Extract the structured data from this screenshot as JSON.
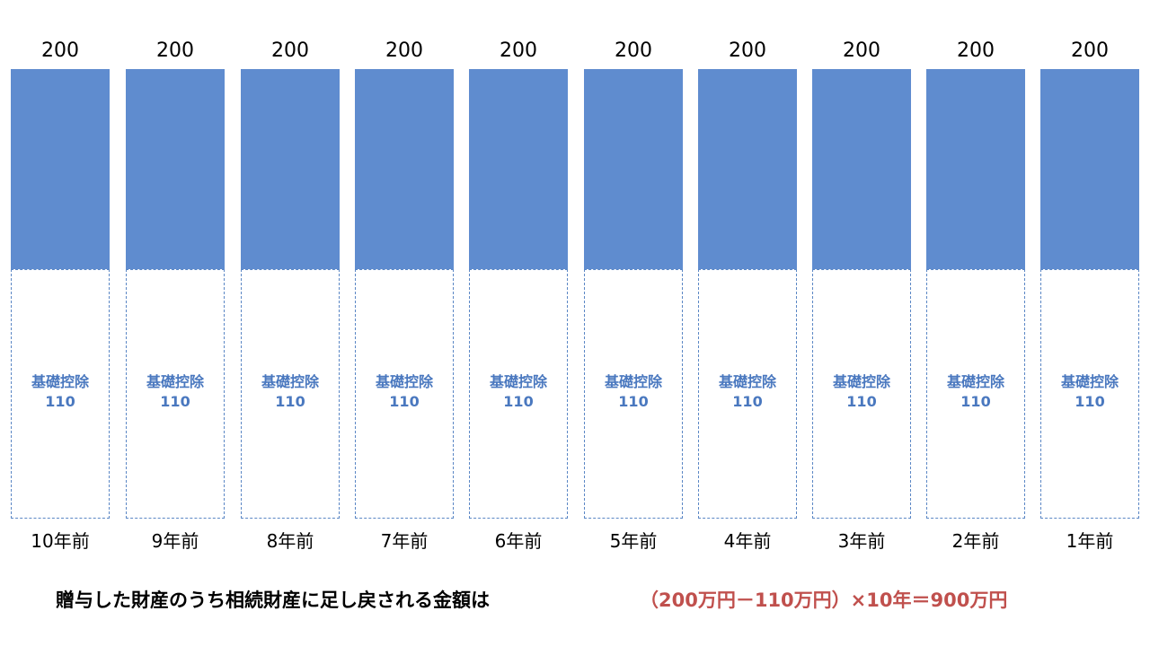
{
  "colors": {
    "bar": "#5f8ccf",
    "deduction_text": "#4a78bf",
    "deduction_border": "#5b87c5",
    "formula": "#c0504d"
  },
  "columns": [
    {
      "value": "200",
      "deduction_label": "基礎控除",
      "deduction_value": "110",
      "year": "10年前"
    },
    {
      "value": "200",
      "deduction_label": "基礎控除",
      "deduction_value": "110",
      "year": "9年前"
    },
    {
      "value": "200",
      "deduction_label": "基礎控除",
      "deduction_value": "110",
      "year": "8年前"
    },
    {
      "value": "200",
      "deduction_label": "基礎控除",
      "deduction_value": "110",
      "year": "7年前"
    },
    {
      "value": "200",
      "deduction_label": "基礎控除",
      "deduction_value": "110",
      "year": "6年前"
    },
    {
      "value": "200",
      "deduction_label": "基礎控除",
      "deduction_value": "110",
      "year": "5年前"
    },
    {
      "value": "200",
      "deduction_label": "基礎控除",
      "deduction_value": "110",
      "year": "4年前"
    },
    {
      "value": "200",
      "deduction_label": "基礎控除",
      "deduction_value": "110",
      "year": "3年前"
    },
    {
      "value": "200",
      "deduction_label": "基礎控除",
      "deduction_value": "110",
      "year": "2年前"
    },
    {
      "value": "200",
      "deduction_label": "基礎控除",
      "deduction_value": "110",
      "year": "1年前"
    }
  ],
  "formula": {
    "label": "贈与した財産のうち相続財産に足し戻される金額は",
    "expression": "（200万円－110万円）×10年＝900万円"
  }
}
